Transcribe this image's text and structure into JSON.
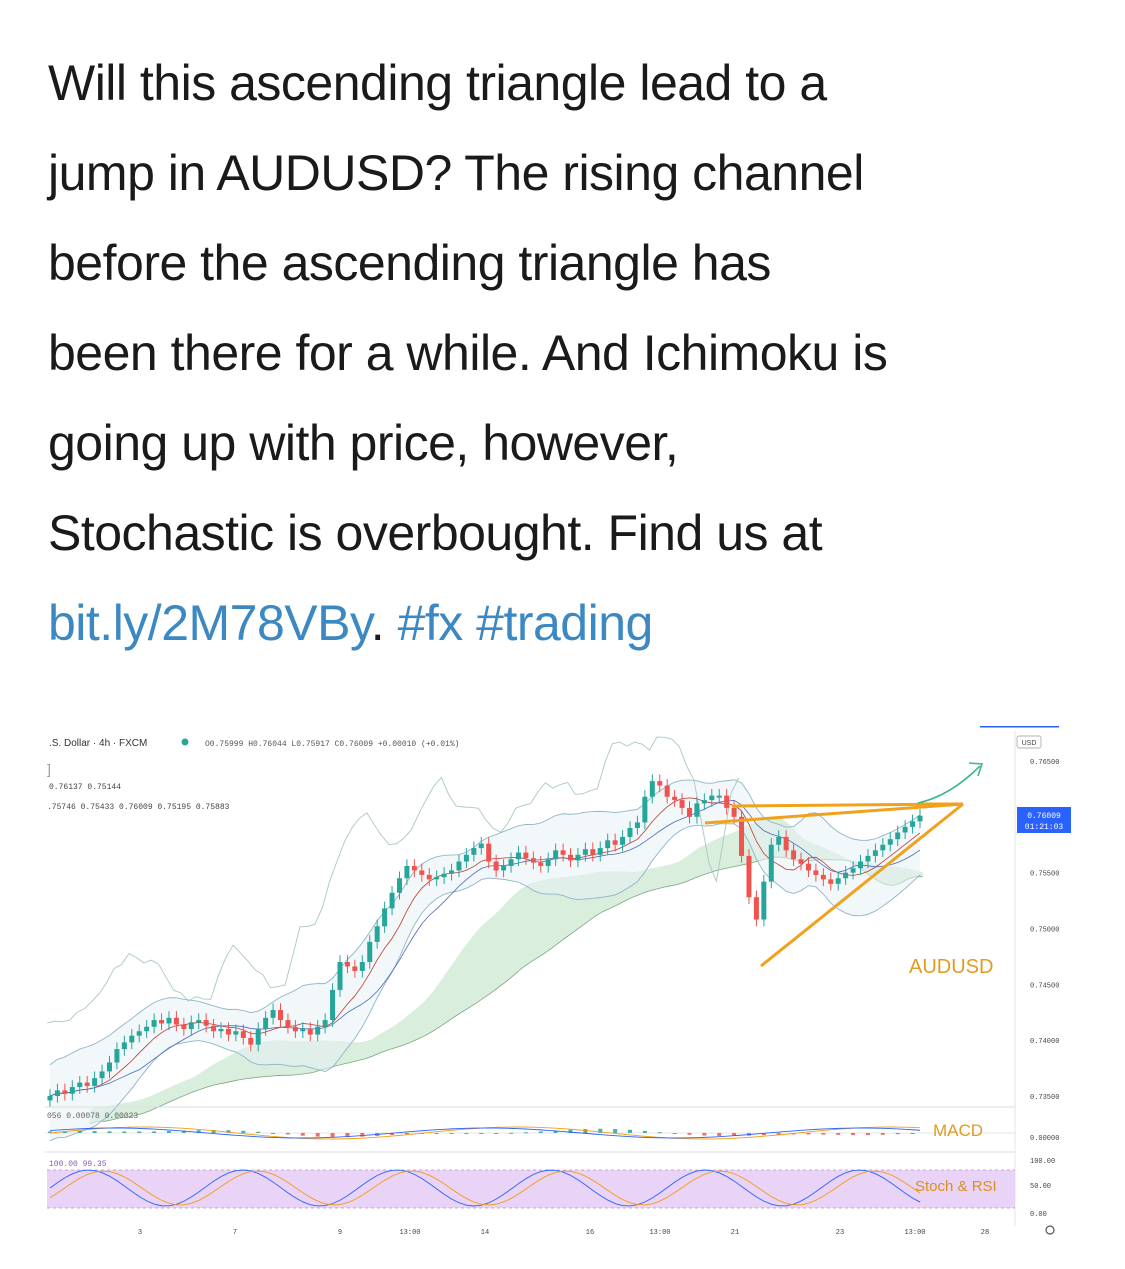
{
  "tweet": {
    "lines": [
      "Will this ascending triangle lead to a",
      "jump in AUDUSD? The rising channel",
      "before the ascending triangle has",
      "been there for a while. And Ichimoku is",
      "going up with price, however,",
      "Stochastic is overbought. Find us at"
    ],
    "link": "bit.ly/2M78VBy",
    "after_link": ". ",
    "hashtags": "#fx #trading"
  },
  "chart": {
    "symbol_line": ".S. Dollar · 4h · FXCM",
    "ohlc": "O0.75999 H0.76044 L0.75917 C0.76009 +0.00010 (+0.01%)",
    "ind1": "0.76137 0.75144",
    "ind2": ".75746 0.75433 0.76009 0.75195 0.75883",
    "macd_vals": "056 0.00078 0.00023",
    "stoch_vals": "100.00 99.35",
    "currency": "USD",
    "price_tag": "0.76009",
    "time_tag": "01:21:03",
    "annotations": {
      "pair": "AUDUSD",
      "macd": "MACD",
      "stoch": "Stoch & RSI"
    },
    "colors": {
      "orange": "#f0a21c",
      "up": "#26a69a",
      "down": "#ef5350",
      "cloud": "#d5ecd9",
      "stoch_band": "#e4c8f5",
      "tag": "#2962ff"
    }
  },
  "chart_data": {
    "type": "candlestick",
    "y_ticks": [
      "0.76500",
      "0.75500",
      "0.75000",
      "0.74500",
      "0.74000",
      "0.73500"
    ],
    "x_ticks": [
      "3",
      "7",
      "9",
      "13:00",
      "14",
      "16",
      "13:00",
      "21",
      "23",
      "13:00",
      "28"
    ],
    "macd_ticks": [
      "0.00000"
    ],
    "stoch_ticks": [
      "100.00",
      "50.00",
      "0.00"
    ],
    "closes": [
      0.735,
      0.7355,
      0.7352,
      0.7358,
      0.7362,
      0.7359,
      0.7366,
      0.7372,
      0.738,
      0.7392,
      0.7398,
      0.7404,
      0.7408,
      0.7412,
      0.7418,
      0.7415,
      0.742,
      0.7414,
      0.741,
      0.7416,
      0.7418,
      0.7413,
      0.7408,
      0.741,
      0.7405,
      0.7408,
      0.7402,
      0.7396,
      0.741,
      0.742,
      0.7427,
      0.7418,
      0.7412,
      0.7408,
      0.741,
      0.7405,
      0.7412,
      0.7418,
      0.7445,
      0.747,
      0.7466,
      0.7462,
      0.747,
      0.7488,
      0.7502,
      0.7518,
      0.7532,
      0.7545,
      0.7556,
      0.7552,
      0.7548,
      0.7544,
      0.7546,
      0.7549,
      0.7552,
      0.756,
      0.7566,
      0.7572,
      0.7576,
      0.756,
      0.7552,
      0.7556,
      0.7562,
      0.7568,
      0.7563,
      0.7559,
      0.7556,
      0.7562,
      0.757,
      0.7566,
      0.7561,
      0.7566,
      0.7571,
      0.7566,
      0.7572,
      0.7579,
      0.7575,
      0.7582,
      0.759,
      0.7595,
      0.7618,
      0.7632,
      0.7628,
      0.7618,
      0.7615,
      0.7608,
      0.76,
      0.7612,
      0.7615,
      0.7619,
      0.7619,
      0.7608,
      0.76,
      0.7565,
      0.7528,
      0.7508,
      0.7542,
      0.7575,
      0.7582,
      0.757,
      0.7562,
      0.7558,
      0.7552,
      0.7548,
      0.7544,
      0.754,
      0.7545,
      0.755,
      0.7554,
      0.756,
      0.7565,
      0.757,
      0.7575,
      0.758,
      0.7586,
      0.7591,
      0.7596,
      0.7601
    ]
  }
}
